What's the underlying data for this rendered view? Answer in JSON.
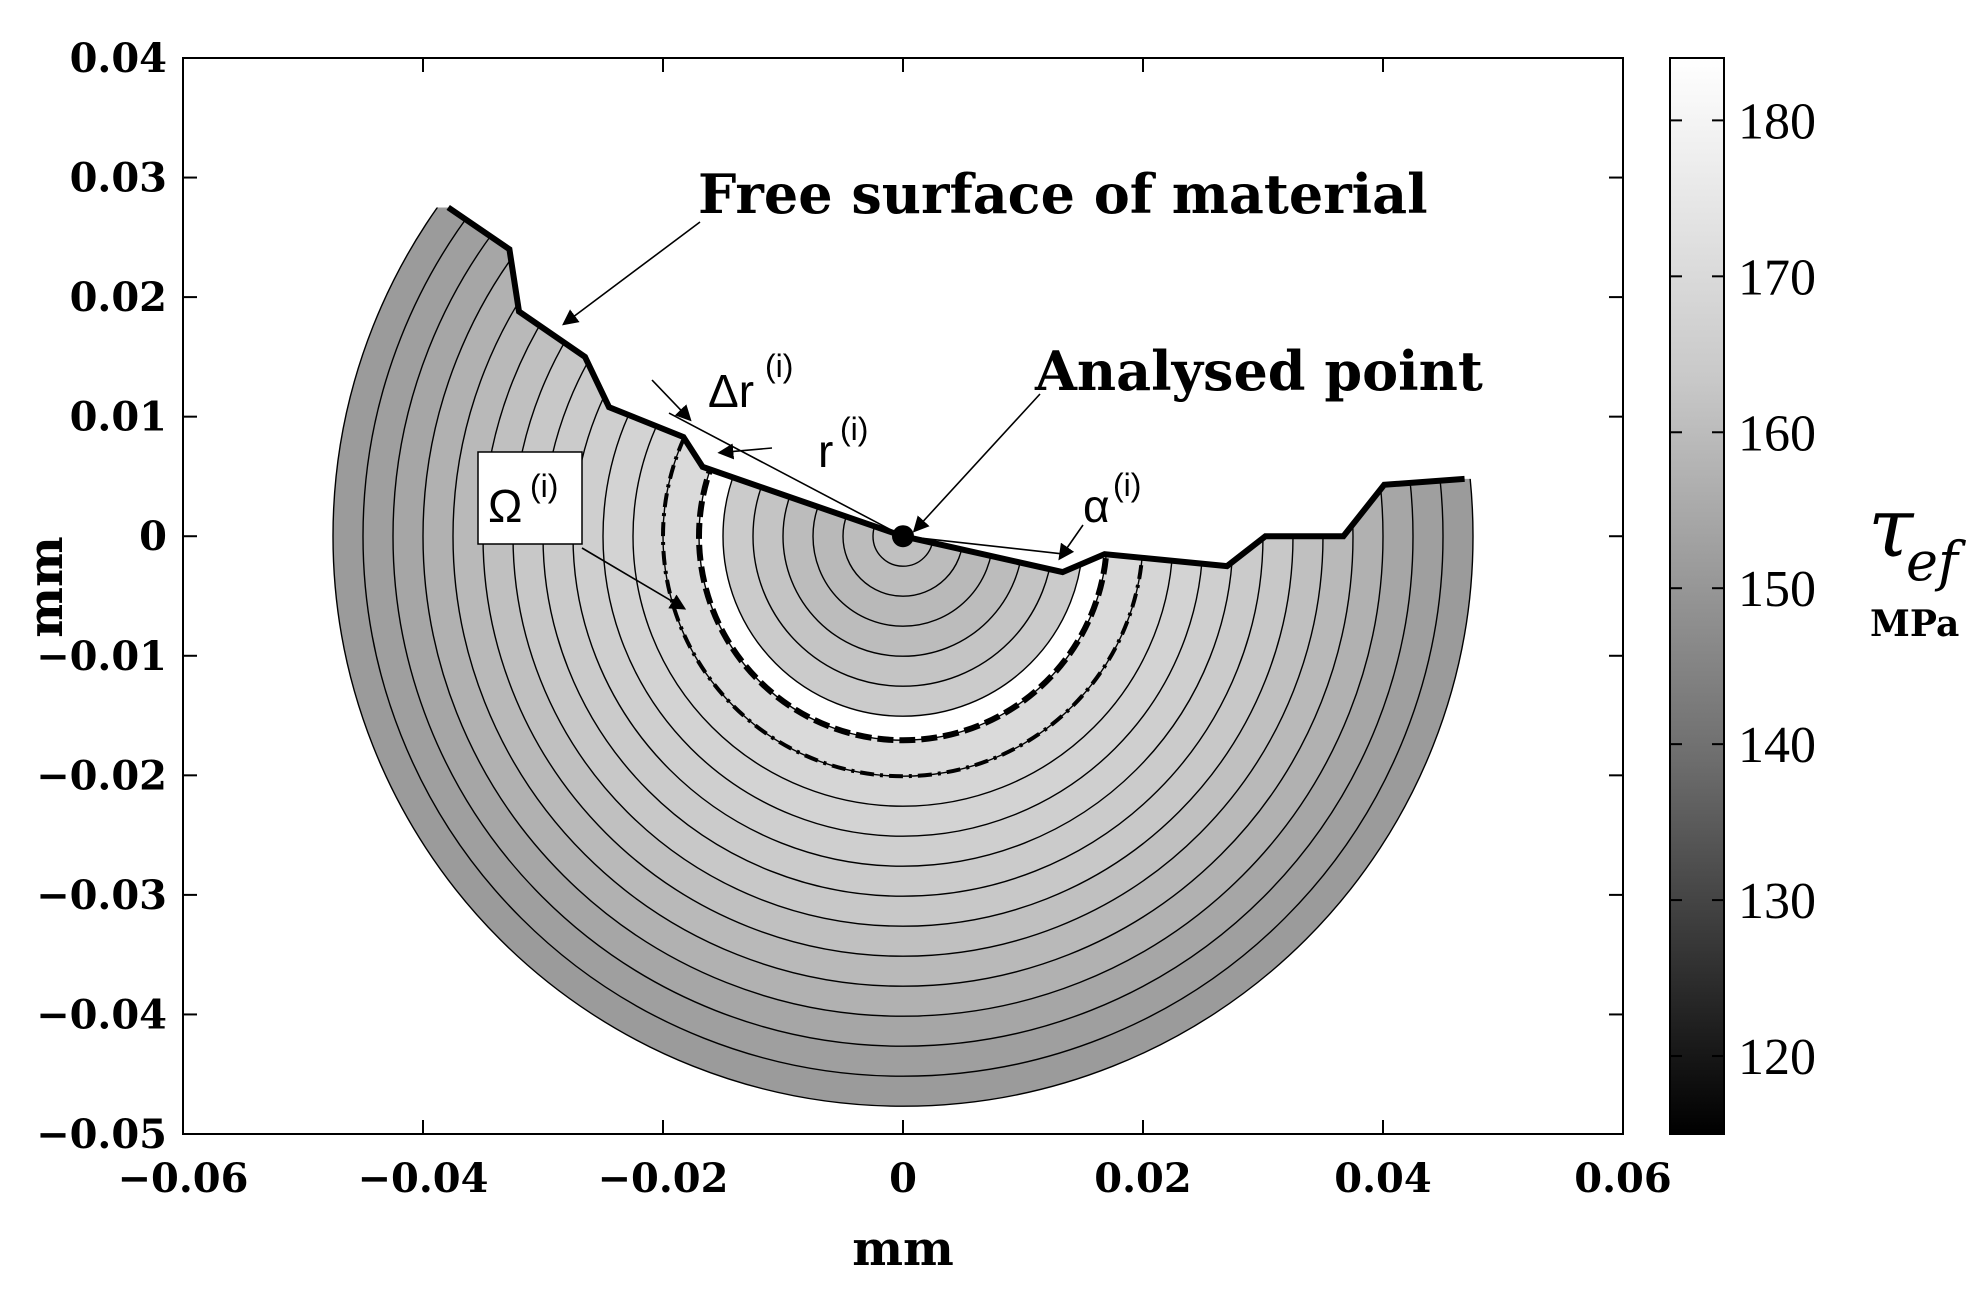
{
  "chart_data": {
    "type": "heatmap",
    "title": "",
    "xlabel": "mm",
    "ylabel": "mm",
    "xlim": [
      -0.06,
      0.06
    ],
    "ylim": [
      -0.05,
      0.04
    ],
    "x_ticks": [
      "−0.06",
      "−0.04",
      "−0.02",
      "0",
      "0.02",
      "0.04",
      "0.06"
    ],
    "x_tick_values": [
      -0.06,
      -0.04,
      -0.02,
      0,
      0.02,
      0.04,
      0.06
    ],
    "y_ticks": [
      "0.04",
      "0.03",
      "0.02",
      "0.01",
      "0",
      "−0.01",
      "−0.02",
      "−0.03",
      "−0.04",
      "−0.05"
    ],
    "y_tick_values": [
      0.04,
      0.03,
      0.02,
      0.01,
      0,
      -0.01,
      -0.02,
      -0.03,
      -0.04,
      -0.05
    ],
    "analysed_point": [
      0,
      0
    ],
    "free_surface": [
      [
        -0.0379,
        0.0275
      ],
      [
        -0.0328,
        0.024
      ],
      [
        -0.032,
        0.0188
      ],
      [
        -0.0265,
        0.015
      ],
      [
        -0.0245,
        0.0108
      ],
      [
        -0.0183,
        0.0083
      ],
      [
        -0.0167,
        0.0058
      ],
      [
        0,
        0
      ],
      [
        0.0133,
        -0.003
      ],
      [
        0.0168,
        -0.0015
      ],
      [
        0.027,
        -0.0025
      ],
      [
        0.0302,
        0
      ],
      [
        0.0367,
        0
      ],
      [
        0.0401,
        0.0043
      ],
      [
        0.0468,
        0.0048
      ]
    ],
    "ring_radii_mm": [
      0.0025,
      0.005,
      0.0075,
      0.01,
      0.0125,
      0.015,
      0.017,
      0.02,
      0.0225,
      0.025,
      0.0275,
      0.03,
      0.0325,
      0.035,
      0.0375,
      0.04,
      0.0425,
      0.045,
      0.0475
    ],
    "ring_tau_MPa": [
      167,
      166,
      165,
      166,
      168,
      170,
      184,
      174,
      173,
      172,
      171,
      170,
      169,
      167,
      165,
      163,
      160,
      158,
      157
    ],
    "highlighted_ring": {
      "inner_r": 0.017,
      "outer_r": 0.02
    },
    "colorbar": {
      "label": "τ",
      "label_subscript": "ef",
      "units": "MPa",
      "range": [
        115,
        184
      ],
      "ticks": [
        "180",
        "170",
        "160",
        "150",
        "140",
        "130",
        "120"
      ],
      "tick_values": [
        180,
        170,
        160,
        150,
        140,
        130,
        120
      ]
    },
    "annotations": {
      "free_surface_label": "Free surface of material",
      "analysed_point_label": "Analysed point",
      "delta_r": "Δr",
      "r": "r",
      "omega": "Ω",
      "alpha": "α",
      "superscript": "(i)"
    }
  }
}
